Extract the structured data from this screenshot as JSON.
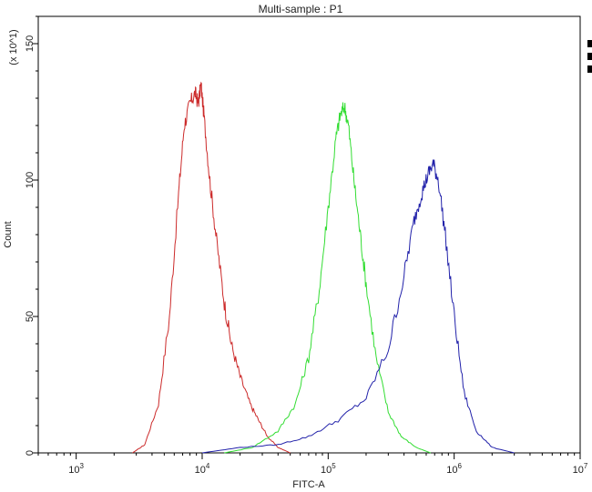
{
  "chart_data": {
    "type": "line",
    "title": "Multi-sample : P1",
    "xlabel": "FITC-A",
    "ylabel": "Count",
    "y_multiplier_label": "(x 10^1)",
    "x_scale": "log",
    "xlim": [
      500,
      10000000
    ],
    "ylim": [
      0,
      160
    ],
    "x_ticks": [
      {
        "value": 1000,
        "base": "10",
        "exp": "3"
      },
      {
        "value": 10000,
        "base": "10",
        "exp": "4"
      },
      {
        "value": 100000,
        "base": "10",
        "exp": "5"
      },
      {
        "value": 1000000,
        "base": "10",
        "exp": "6"
      },
      {
        "value": 10000000,
        "base": "10",
        "exp": "7"
      }
    ],
    "y_ticks": [
      {
        "value": 0,
        "label": "0"
      },
      {
        "value": 50,
        "label": "50"
      },
      {
        "value": 100,
        "label": "100"
      },
      {
        "value": 150,
        "label": "150"
      }
    ],
    "grid": false,
    "legend": "none",
    "series": [
      {
        "color": "#cc2b2b",
        "x": [
          2800,
          3500,
          4500,
          5500,
          6500,
          7200,
          8000,
          8800,
          9300,
          9800,
          10500,
          11500,
          13000,
          15000,
          17000,
          20000,
          24000,
          28000,
          33000,
          40000,
          50000
        ],
        "y": [
          0,
          3,
          18,
          50,
          95,
          120,
          128,
          132,
          128,
          135,
          120,
          100,
          78,
          55,
          40,
          28,
          18,
          12,
          6,
          2,
          0
        ]
      },
      {
        "color": "#33dd33",
        "x": [
          15000,
          25000,
          40000,
          55000,
          70000,
          85000,
          100000,
          115000,
          125000,
          135000,
          145000,
          160000,
          180000,
          200000,
          240000,
          300000,
          380000,
          500000,
          650000
        ],
        "y": [
          0,
          2,
          8,
          18,
          35,
          60,
          90,
          115,
          124,
          127,
          120,
          100,
          80,
          62,
          35,
          15,
          6,
          2,
          0
        ]
      },
      {
        "color": "#2222aa",
        "x": [
          10000,
          20000,
          40000,
          70000,
          120000,
          200000,
          300000,
          400000,
          480000,
          550000,
          620000,
          680000,
          750000,
          850000,
          1000000,
          1200000,
          1500000,
          2000000,
          3000000
        ],
        "y": [
          0,
          2,
          3,
          6,
          12,
          20,
          38,
          65,
          85,
          95,
          102,
          106,
          100,
          80,
          50,
          22,
          8,
          2,
          0
        ]
      }
    ]
  }
}
